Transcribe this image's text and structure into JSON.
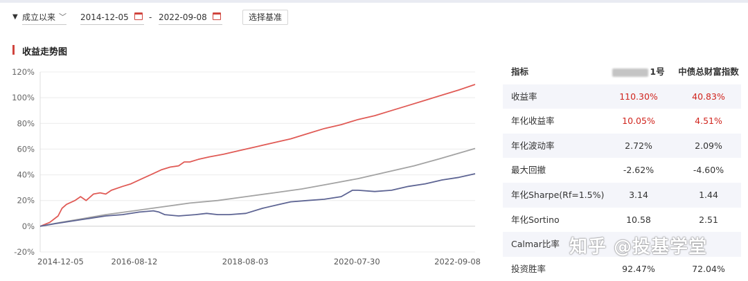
{
  "filter": {
    "period": "成立以来",
    "start_date": "2014-12-05",
    "dash": "-",
    "end_date": "2022-09-08",
    "benchmark_button": "选择基准"
  },
  "section": {
    "title": "收益走势图"
  },
  "colors": {
    "fund": "#e05a55",
    "benchmark": "#5d6493",
    "third": "#a3a3a3",
    "accent": "#d0443d"
  },
  "chart_data": {
    "type": "line",
    "title": "收益走势图",
    "y_ticks": [
      "120%",
      "100%",
      "80%",
      "60%",
      "40%",
      "20%",
      "0%",
      "-20%"
    ],
    "y_tick_values": [
      120,
      100,
      80,
      60,
      40,
      20,
      0,
      -20
    ],
    "ylim": [
      -20,
      120
    ],
    "x_ticks": [
      "2014-12-05",
      "2016-08-12",
      "2018-08-03",
      "2020-07-30",
      "2022-09-08"
    ],
    "x_tick_values": [
      2014.93,
      2016.61,
      2018.59,
      2020.58,
      2022.69
    ],
    "xlim": [
      2014.93,
      2022.69
    ],
    "grid": true,
    "series": [
      {
        "color": "#e05a55",
        "x": [
          2014.93,
          2015.1,
          2015.25,
          2015.32,
          2015.4,
          2015.55,
          2015.65,
          2015.75,
          2015.88,
          2016.0,
          2016.1,
          2016.2,
          2016.4,
          2016.55,
          2016.75,
          2016.95,
          2017.1,
          2017.25,
          2017.4,
          2017.5,
          2017.6,
          2017.75,
          2017.95,
          2018.2,
          2018.5,
          2018.8,
          2019.1,
          2019.4,
          2019.7,
          2020.0,
          2020.3,
          2020.6,
          2020.9,
          2021.2,
          2021.5,
          2021.8,
          2022.1,
          2022.4,
          2022.69
        ],
        "y": [
          0,
          3,
          8,
          14,
          17,
          20,
          23,
          20,
          25,
          26,
          25,
          28,
          31,
          33,
          37,
          41,
          44,
          46,
          47,
          50,
          50,
          52,
          54,
          56,
          59,
          62,
          65,
          68,
          72,
          76,
          79,
          83,
          86,
          90,
          94,
          98,
          102,
          106,
          110.3
        ]
      },
      {
        "color": "#a3a3a3",
        "x": [
          2014.93,
          2015.3,
          2015.7,
          2016.1,
          2016.6,
          2017.1,
          2017.6,
          2018.1,
          2018.6,
          2019.1,
          2019.6,
          2020.1,
          2020.6,
          2021.1,
          2021.6,
          2022.1,
          2022.69
        ],
        "y": [
          0,
          3,
          6,
          9,
          12,
          15,
          18,
          20,
          23,
          26,
          29,
          33,
          37,
          42,
          47,
          53,
          60.5
        ]
      },
      {
        "color": "#5d6493",
        "x": [
          2014.93,
          2015.2,
          2015.5,
          2015.8,
          2016.1,
          2016.4,
          2016.7,
          2016.95,
          2017.05,
          2017.15,
          2017.4,
          2017.7,
          2017.9,
          2018.1,
          2018.3,
          2018.6,
          2018.9,
          2019.2,
          2019.4,
          2019.7,
          2020.0,
          2020.3,
          2020.5,
          2020.6,
          2020.9,
          2021.2,
          2021.5,
          2021.8,
          2022.1,
          2022.4,
          2022.69
        ],
        "y": [
          0,
          2,
          4,
          6,
          8,
          9,
          11,
          12,
          11,
          9,
          8,
          9,
          10,
          9,
          9,
          10,
          14,
          17,
          19,
          20,
          21,
          23,
          28,
          28,
          27,
          28,
          31,
          33,
          36,
          38,
          40.83
        ]
      }
    ]
  },
  "table": {
    "headers": {
      "metric": "指标",
      "fund": "1号",
      "benchmark": "中债总财富指数"
    },
    "rows": [
      {
        "metric": "收益率",
        "fund": "110.30%",
        "benchmark": "40.83%",
        "highlight": true
      },
      {
        "metric": "年化收益率",
        "fund": "10.05%",
        "benchmark": "4.51%",
        "highlight": true
      },
      {
        "metric": "年化波动率",
        "fund": "2.72%",
        "benchmark": "2.09%",
        "highlight": false
      },
      {
        "metric": "最大回撤",
        "fund": "-2.62%",
        "benchmark": "-4.60%",
        "highlight": false
      },
      {
        "metric": "年化Sharpe(Rf=1.5%)",
        "fund": "3.14",
        "benchmark": "1.44",
        "highlight": false
      },
      {
        "metric": "年化Sortino",
        "fund": "10.58",
        "benchmark": "2.51",
        "highlight": false
      },
      {
        "metric": "Calmar比率",
        "fund": "",
        "benchmark": "",
        "highlight": false
      },
      {
        "metric": "投资胜率",
        "fund": "92.47%",
        "benchmark": "72.04%",
        "highlight": false
      }
    ]
  },
  "watermark": {
    "text": "知乎 @投基学堂"
  }
}
